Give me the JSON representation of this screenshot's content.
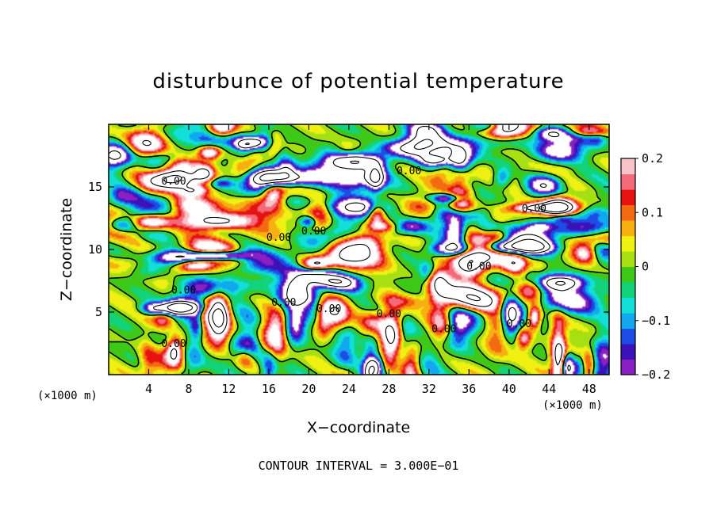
{
  "chart_data": {
    "type": "heatmap",
    "title": "disturbunce of potential temperature",
    "xlabel": "X−coordinate",
    "ylabel": "Z−coordinate",
    "x_unit": "(×1000 m)",
    "z_unit": "(×1000 m)",
    "xlim": [
      0,
      50
    ],
    "ylim": [
      0,
      20
    ],
    "x_ticks": [
      4,
      8,
      12,
      16,
      20,
      24,
      28,
      32,
      36,
      40,
      44,
      48
    ],
    "x_tick_labels": [
      "4",
      "8",
      "12",
      "16",
      "20",
      "24",
      "28",
      "32",
      "36",
      "40",
      "44",
      "48"
    ],
    "y_ticks": [
      5,
      10,
      15
    ],
    "y_tick_labels": [
      "5",
      "10",
      "15"
    ],
    "colorbar": {
      "range": [
        -0.2,
        0.2
      ],
      "tick_values": [
        0.2,
        0.1,
        0,
        -0.1,
        -0.2
      ],
      "tick_labels": [
        "0.2",
        "0.1",
        "0",
        "−0.1",
        "−0.2"
      ],
      "colors": [
        "#8a1fc4",
        "#3a12b8",
        "#1d4de6",
        "#12a8f0",
        "#12e0d8",
        "#12d27a",
        "#3ec818",
        "#a6e012",
        "#f0f012",
        "#f8b010",
        "#f46a12",
        "#e61212",
        "#f46a7a",
        "#f8c4c8"
      ]
    },
    "contour_interval_label": "CONTOUR INTERVAL = 3.000E−01",
    "contour_labels": [
      {
        "text": "0.00",
        "x": 6.5,
        "z": 15.2
      },
      {
        "text": "0.00",
        "x": 30.0,
        "z": 16.0
      },
      {
        "text": "0.00",
        "x": 42.5,
        "z": 13.0
      },
      {
        "text": "0.00",
        "x": 17.0,
        "z": 10.7
      },
      {
        "text": "0.00",
        "x": 20.5,
        "z": 11.2
      },
      {
        "text": "0.00",
        "x": 37.0,
        "z": 8.4
      },
      {
        "text": "0.00",
        "x": 7.5,
        "z": 6.5
      },
      {
        "text": "0.00",
        "x": 17.5,
        "z": 5.5
      },
      {
        "text": "0.00",
        "x": 22.0,
        "z": 5.0
      },
      {
        "text": "0.00",
        "x": 28.0,
        "z": 4.6
      },
      {
        "text": "0.00",
        "x": 33.5,
        "z": 3.4
      },
      {
        "text": "0.00",
        "x": 41.0,
        "z": 3.8
      },
      {
        "text": "0.00",
        "x": 6.5,
        "z": 2.2
      }
    ],
    "grid": false,
    "notes_visible": "filled contour field of small eddies; white regions above 0.2 with thin solid contours, dashed negative contours"
  }
}
